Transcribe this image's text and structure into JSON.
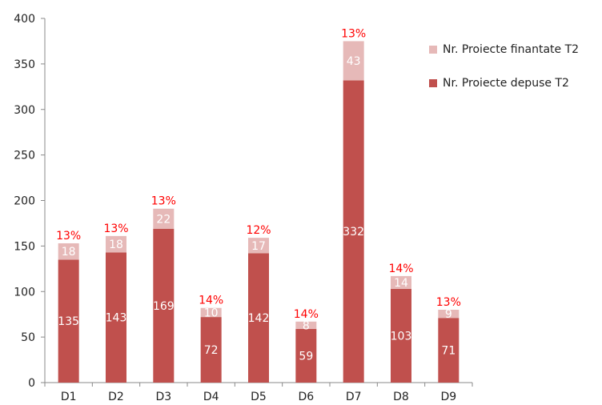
{
  "chart_data": {
    "type": "bar",
    "stacked": true,
    "categories": [
      "D1",
      "D2",
      "D3",
      "D4",
      "D5",
      "D6",
      "D7",
      "D8",
      "D9"
    ],
    "series": [
      {
        "name": "Nr. Proiecte depuse T2",
        "values": [
          135,
          143,
          169,
          72,
          142,
          59,
          332,
          103,
          71
        ],
        "color": "#c0504d"
      },
      {
        "name": "Nr. Proiecte finantate T2",
        "values": [
          18,
          18,
          22,
          10,
          17,
          8,
          43,
          14,
          9
        ],
        "color": "#e6b9b8"
      }
    ],
    "percent_labels": [
      "13%",
      "13%",
      "13%",
      "14%",
      "12%",
      "14%",
      "13%",
      "14%",
      "13%"
    ],
    "percent_label_color": "#ff0000",
    "ylim": [
      0,
      400
    ],
    "yticks": [
      0,
      50,
      100,
      150,
      200,
      250,
      300,
      350,
      400
    ],
    "legend_position": "top-right",
    "grid": false
  }
}
